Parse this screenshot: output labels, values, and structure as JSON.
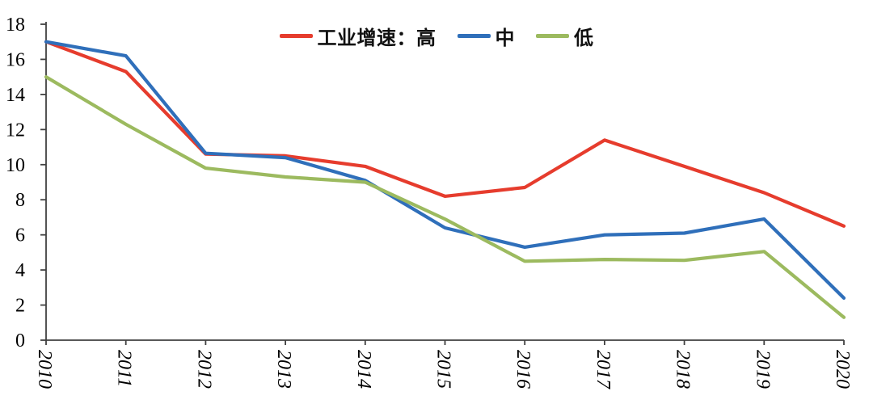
{
  "chart_data": {
    "type": "line",
    "title": "",
    "x": [
      "2010",
      "2011",
      "2012",
      "2013",
      "2014",
      "2015",
      "2016",
      "2017",
      "2018",
      "2019",
      "2020"
    ],
    "series": [
      {
        "name": "工业增速：高",
        "color": "#e63c2d",
        "values": [
          17.0,
          15.3,
          10.6,
          10.5,
          9.9,
          8.2,
          8.7,
          11.4,
          9.9,
          8.4,
          6.5
        ]
      },
      {
        "name": "中",
        "color": "#2f6fba",
        "values": [
          17.0,
          16.2,
          10.65,
          10.4,
          9.1,
          6.4,
          5.3,
          6.0,
          6.1,
          6.9,
          2.4
        ]
      },
      {
        "name": "低",
        "color": "#9cba5f",
        "values": [
          15.0,
          12.3,
          9.8,
          9.3,
          9.0,
          6.9,
          4.5,
          4.6,
          4.55,
          5.05,
          1.3
        ]
      }
    ],
    "ylim": [
      0,
      18
    ],
    "yticks": [
      0,
      2,
      4,
      6,
      8,
      10,
      12,
      14,
      16,
      18
    ],
    "xlabel": "",
    "ylabel": "",
    "grid": false,
    "legend_position": "top-center",
    "axis_color": "#404040",
    "text_color": "#000000"
  }
}
